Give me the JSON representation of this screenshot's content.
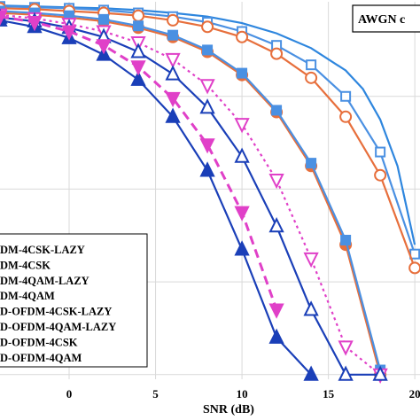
{
  "chart_data": {
    "type": "line",
    "annotation": "AWGN c",
    "xlabel": "SNR (dB)",
    "ylabel": "",
    "xlim": [
      -4,
      20.3
    ],
    "ylim": [
      -4.05,
      0.02
    ],
    "yscale": "log",
    "grid": true,
    "xticks": [
      "0",
      "5",
      "10",
      "15",
      "20"
    ],
    "legend_position": "bottom-left",
    "series": [
      {
        "name": "DM-4CSK-LAZY",
        "color": "#2e86de",
        "marker": "circle-line-only",
        "dash": "solid",
        "x": [
          -4,
          -2,
          0,
          2,
          4,
          6,
          8,
          10,
          12,
          14,
          16,
          17,
          18,
          19,
          20
        ],
        "y": [
          -0.02,
          -0.03,
          -0.04,
          -0.05,
          -0.07,
          -0.1,
          -0.14,
          -0.21,
          -0.32,
          -0.48,
          -0.72,
          -0.92,
          -1.25,
          -1.75,
          -2.6
        ]
      },
      {
        "name": "DM-4CSK",
        "color": "#4a90e2",
        "marker": "square-open",
        "dash": "solid",
        "x": [
          -4,
          -2,
          0,
          2,
          4,
          6,
          8,
          10,
          12,
          14,
          16,
          18,
          20
        ],
        "y": [
          -0.03,
          -0.04,
          -0.05,
          -0.07,
          -0.1,
          -0.14,
          -0.2,
          -0.3,
          -0.45,
          -0.66,
          -1.0,
          -1.6,
          -2.7
        ]
      },
      {
        "name": "DM-4QAM-LAZY",
        "color": "#e76f3c",
        "marker": "circle-open",
        "dash": "solid",
        "x": [
          -4,
          -2,
          0,
          2,
          4,
          6,
          8,
          10,
          12,
          14,
          16,
          18,
          20
        ],
        "y": [
          -0.05,
          -0.06,
          -0.08,
          -0.1,
          -0.13,
          -0.18,
          -0.25,
          -0.36,
          -0.54,
          -0.8,
          -1.22,
          -1.85,
          -2.85
        ]
      },
      {
        "name": "DM-4QAM",
        "color": "#e76f3c",
        "marker": "circle-filled",
        "dash": "solid",
        "x": [
          -4,
          -2,
          0,
          2,
          4,
          6,
          8,
          10,
          12,
          14,
          16,
          18
        ],
        "y": [
          -0.1,
          -0.12,
          -0.15,
          -0.19,
          -0.26,
          -0.36,
          -0.52,
          -0.77,
          -1.17,
          -1.75,
          -2.6,
          -4.0
        ]
      },
      {
        "name": "D-OFDM-4CSK-LAZY",
        "color": "#4a90e2",
        "marker": "square-filled",
        "dash": "solid",
        "x": [
          -4,
          -2,
          0,
          2,
          4,
          6,
          8,
          10,
          12,
          14,
          16,
          18
        ],
        "y": [
          -0.08,
          -0.1,
          -0.13,
          -0.17,
          -0.24,
          -0.34,
          -0.5,
          -0.75,
          -1.15,
          -1.72,
          -2.55,
          -3.95
        ]
      },
      {
        "name": "D-OFDM-4QAM-LAZY",
        "color": "#e040c8",
        "marker": "triangle-down-open",
        "dash": "dotted",
        "x": [
          -4,
          -2,
          0,
          2,
          4,
          6,
          8,
          10,
          12,
          14,
          16,
          18
        ],
        "y": [
          -0.12,
          -0.16,
          -0.22,
          -0.3,
          -0.42,
          -0.6,
          -0.88,
          -1.3,
          -1.9,
          -2.75,
          -3.7,
          -4.0
        ]
      },
      {
        "name": "D-OFDM-4CSK",
        "color": "#1a3fb8",
        "marker": "triangle-up-open",
        "dash": "solid",
        "x": [
          -4,
          -2,
          0,
          2,
          4,
          6,
          8,
          10,
          12,
          14,
          16,
          18
        ],
        "y": [
          -0.15,
          -0.19,
          -0.26,
          -0.36,
          -0.52,
          -0.76,
          -1.12,
          -1.65,
          -2.4,
          -3.3,
          -4.0,
          -4.0
        ]
      },
      {
        "name": "D-OFDM-4QAM",
        "color": "#1a3fb8",
        "marker": "triangle-up-filled",
        "dash": "solid",
        "x": [
          -4,
          -2,
          0,
          2,
          4,
          6,
          8,
          10,
          12,
          14
        ],
        "y": [
          -0.18,
          -0.25,
          -0.37,
          -0.55,
          -0.82,
          -1.22,
          -1.8,
          -2.65,
          -3.6,
          -4.0
        ]
      },
      {
        "name": "",
        "color": "#e040c8",
        "marker": "triangle-down-filled",
        "dash": "dashed",
        "x": [
          -4,
          -2,
          0,
          2,
          4,
          6,
          8,
          10,
          12
        ],
        "y": [
          -0.14,
          -0.2,
          -0.3,
          -0.45,
          -0.68,
          -1.02,
          -1.52,
          -2.25,
          -3.3
        ]
      }
    ]
  },
  "legend": {
    "entries": [
      "DM-4CSK-LAZY",
      "DM-4CSK",
      "DM-4QAM-LAZY",
      "DM-4QAM",
      "D-OFDM-4CSK-LAZY",
      "D-OFDM-4QAM-LAZY",
      "D-OFDM-4CSK",
      "D-OFDM-4QAM"
    ]
  }
}
